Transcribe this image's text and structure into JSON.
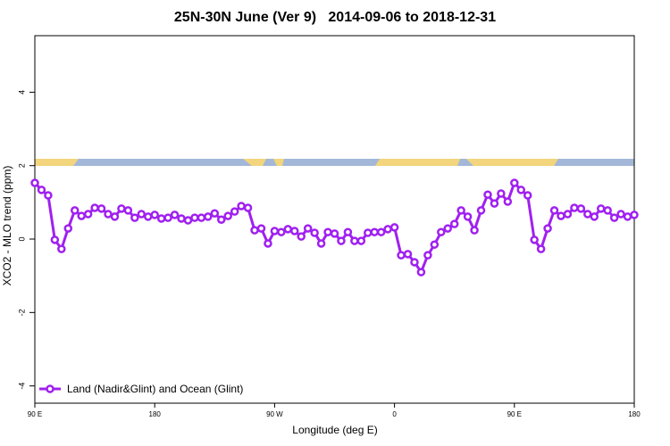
{
  "chart_data": {
    "type": "line",
    "title": "25N-30N June (Ver 9)   2014-09-06 to 2018-12-31",
    "xlabel": "Longitude (deg E)",
    "ylabel": "XCO2 - MLO trend (ppm)",
    "x": [
      90,
      95,
      100,
      105,
      110,
      115,
      120,
      125,
      130,
      135,
      140,
      145,
      150,
      155,
      160,
      165,
      170,
      175,
      180,
      185,
      190,
      195,
      200,
      205,
      210,
      215,
      220,
      225,
      230,
      235,
      240,
      245,
      250,
      255,
      260,
      265,
      270,
      275,
      280,
      285,
      290,
      295,
      300,
      305,
      310,
      315,
      320,
      325,
      330,
      335,
      340,
      345,
      350,
      355,
      360,
      365,
      370,
      375,
      380,
      385,
      390,
      395,
      400,
      405,
      410,
      415,
      420,
      425,
      430,
      435,
      440,
      445,
      450,
      455,
      460,
      465,
      470,
      475,
      480,
      485,
      490,
      495,
      500,
      505,
      510,
      515,
      520,
      525,
      530,
      535,
      540
    ],
    "series": [
      {
        "name": "Land (Nadir&Glint) and Ocean (Glint)",
        "color": "#a020f0",
        "values": [
          1.53,
          1.34,
          1.19,
          -0.02,
          -0.27,
          0.29,
          0.78,
          0.63,
          0.68,
          0.85,
          0.83,
          0.68,
          0.61,
          0.83,
          0.78,
          0.58,
          0.68,
          0.61,
          0.66,
          0.56,
          0.58,
          0.66,
          0.56,
          0.51,
          0.58,
          0.58,
          0.61,
          0.7,
          0.53,
          0.63,
          0.75,
          0.9,
          0.85,
          0.24,
          0.29,
          -0.12,
          0.22,
          0.19,
          0.27,
          0.22,
          0.07,
          0.29,
          0.17,
          -0.12,
          0.19,
          0.15,
          -0.05,
          0.19,
          -0.05,
          -0.05,
          0.17,
          0.19,
          0.19,
          0.27,
          0.32,
          -0.44,
          -0.41,
          -0.63,
          -0.9,
          -0.44,
          -0.15,
          0.19,
          0.29,
          0.41,
          0.78,
          0.61,
          0.24,
          0.78,
          1.21,
          0.97,
          1.24,
          1.02,
          1.53,
          1.34,
          1.19,
          -0.02,
          -0.27,
          0.29,
          0.78,
          0.63,
          0.68,
          0.85,
          0.83,
          0.68,
          0.61,
          0.83,
          0.78,
          0.58,
          0.68,
          0.61,
          0.66
        ]
      }
    ],
    "xlim": [
      90,
      540
    ],
    "xticks": [
      {
        "value": 90,
        "label": "90 E"
      },
      180,
      {
        "value": 270,
        "label": "90 W"
      },
      {
        "value": 360,
        "label": "0"
      },
      {
        "value": 450,
        "label": "90 E"
      },
      {
        "value": 540,
        "label": "180"
      }
    ],
    "ylim": [
      -4.47,
      5.54
    ],
    "yticks": [
      -4,
      -2,
      0,
      2,
      4
    ],
    "legend": "bottom-left"
  }
}
